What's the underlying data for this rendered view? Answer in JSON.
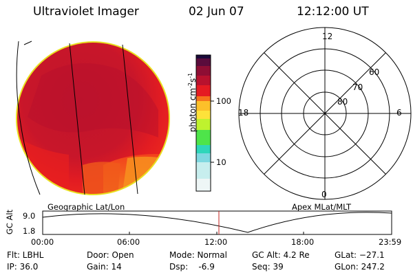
{
  "header": {
    "instrument": "Ultraviolet Imager",
    "date": "02 Jun 07",
    "time": "12:12:00 UT"
  },
  "colorbar": {
    "label_parts": [
      "photon cm",
      "-2",
      "s",
      "-1"
    ],
    "ticks": [
      "100",
      "10"
    ],
    "colors_top_to_bottom": [
      "#1a0a3a",
      "#5a0c3c",
      "#a01030",
      "#e51b22",
      "#f4431c",
      "#f7871d",
      "#fde23a",
      "#bff22e",
      "#4ee44a",
      "#2fd6ba",
      "#b9ecec",
      "#eef6f6"
    ]
  },
  "polar_plot": {
    "mlt_labels": [
      "12",
      "18",
      "6",
      "0"
    ],
    "latitude_labels": [
      "60",
      "70",
      "80"
    ]
  },
  "altitude_panel": {
    "y_axis_label": "GC Alt",
    "y_ticks": [
      "9.0",
      "1.8"
    ],
    "left_title": "Geographic Lat/Lon",
    "right_title": "Apex MLat/MLT",
    "x_ticks": [
      "00:00",
      "06:00",
      "12:00",
      "18:00",
      "23:59"
    ],
    "marker_color": "#c0201c"
  },
  "status": {
    "filter": "Flt: LBHL",
    "ip": "IP: 36.0",
    "door": "Door: Open",
    "gain": "Gain: 14",
    "mode": "Mode: Normal",
    "dsp": "Dsp:    -6.9",
    "gc_alt": "GC Alt: 4.2 Re",
    "seq": "Seq: 39",
    "glat": "GLat: −27.1",
    "glon": "GLon: 247.2"
  }
}
